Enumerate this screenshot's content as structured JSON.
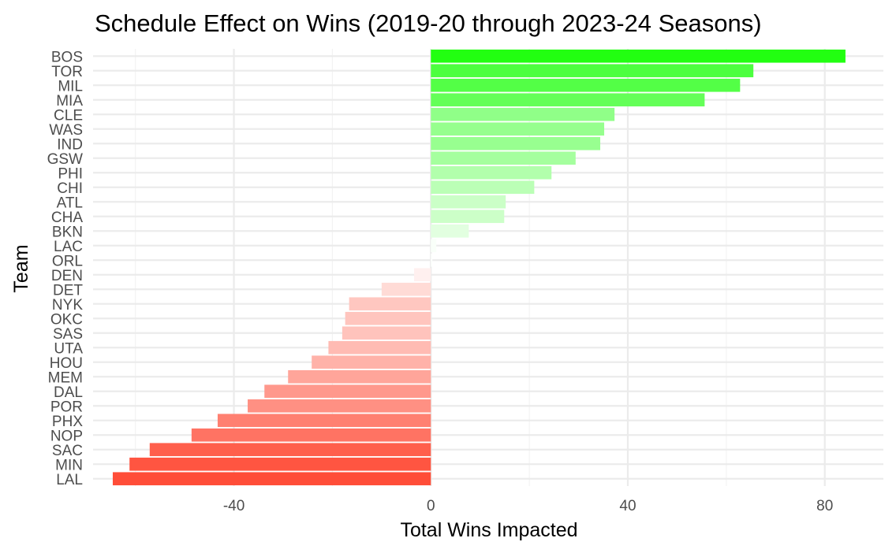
{
  "chart_data": {
    "type": "bar",
    "orientation": "horizontal",
    "title": "Schedule Effect on Wins (2019-20 through 2023-24 Seasons)",
    "xlabel": "Total Wins Impacted",
    "ylabel": "Team",
    "xlim": [
      -68.6,
      91.9
    ],
    "xticks": [
      -40,
      0,
      40,
      80
    ],
    "grid": true,
    "legend": "none",
    "colors": {
      "positive_max": "#22ff11",
      "negative_max": "#ff4d38",
      "zero": "#ffffff"
    },
    "categories": [
      "BOS",
      "TOR",
      "MIL",
      "MIA",
      "CLE",
      "WAS",
      "IND",
      "GSW",
      "PHI",
      "CHI",
      "ATL",
      "CHA",
      "BKN",
      "LAC",
      "ORL",
      "DEN",
      "DET",
      "NYK",
      "OKC",
      "SAS",
      "UTA",
      "HOU",
      "MEM",
      "DAL",
      "POR",
      "PHX",
      "NOP",
      "SAC",
      "MIN",
      "LAL"
    ],
    "values": [
      84.2,
      65.5,
      62.8,
      55.6,
      37.3,
      35.2,
      34.4,
      29.4,
      24.5,
      21.0,
      15.2,
      14.9,
      7.7,
      1.1,
      0.3,
      -3.4,
      -10.0,
      -16.6,
      -17.4,
      -18.0,
      -20.8,
      -24.2,
      -29.0,
      -33.8,
      -37.2,
      -43.3,
      -48.6,
      -57.1,
      -61.2,
      -64.6
    ]
  }
}
